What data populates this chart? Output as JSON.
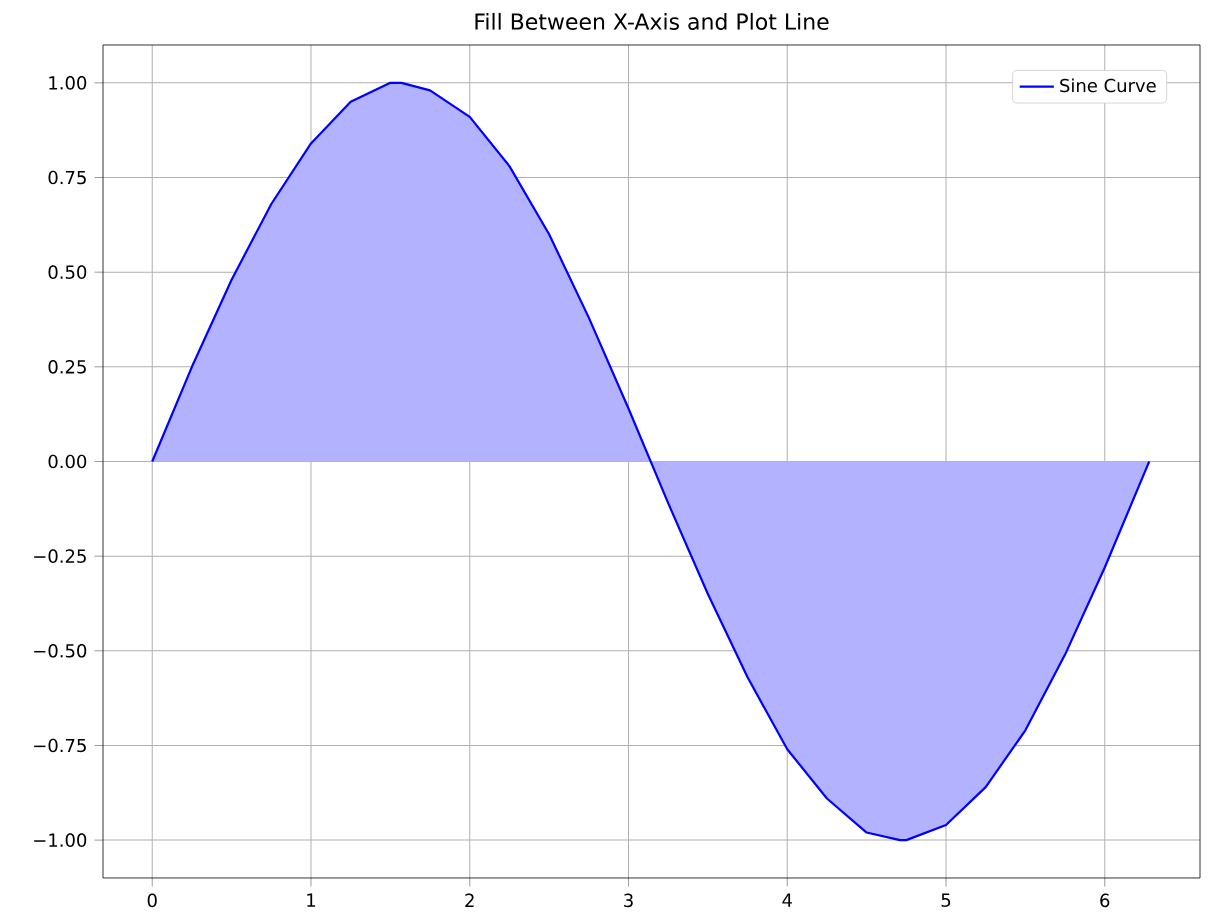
{
  "chart_data": {
    "type": "area",
    "title": "Fill Between X-Axis and Plot Line",
    "series": [
      {
        "name": "Sine Curve",
        "color": "#0000ff",
        "x": [
          0,
          0.25,
          0.5,
          0.75,
          1,
          1.25,
          1.5,
          1.57,
          1.75,
          2,
          2.25,
          2.5,
          2.75,
          3,
          3.25,
          3.5,
          3.75,
          4,
          4.25,
          4.5,
          4.71,
          4.75,
          5,
          5.25,
          5.5,
          5.75,
          6,
          6.25,
          6.28
        ],
        "values": [
          0,
          0.25,
          0.48,
          0.68,
          0.84,
          0.95,
          1.0,
          1.0,
          0.98,
          0.91,
          0.78,
          0.6,
          0.38,
          0.14,
          -0.11,
          -0.35,
          -0.57,
          -0.76,
          -0.89,
          -0.98,
          -1.0,
          -1.0,
          -0.96,
          -0.86,
          -0.71,
          -0.51,
          -0.28,
          -0.03,
          0
        ]
      }
    ],
    "xlim": [
      -0.31,
      6.6
    ],
    "ylim": [
      -1.1,
      1.1
    ],
    "xticks": [
      0,
      1,
      2,
      3,
      4,
      5,
      6
    ],
    "yticks": [
      {
        "value": -1,
        "label": "−1.00"
      },
      {
        "value": -0.75,
        "label": "−0.75"
      },
      {
        "value": -0.5,
        "label": "−0.50"
      },
      {
        "value": -0.25,
        "label": "−0.25"
      },
      {
        "value": 0,
        "label": "0.00"
      },
      {
        "value": 0.25,
        "label": "0.25"
      },
      {
        "value": 0.5,
        "label": "0.50"
      },
      {
        "value": 0.75,
        "label": "0.75"
      },
      {
        "value": 1,
        "label": "1.00"
      }
    ],
    "grid": true,
    "legend": "top right"
  }
}
